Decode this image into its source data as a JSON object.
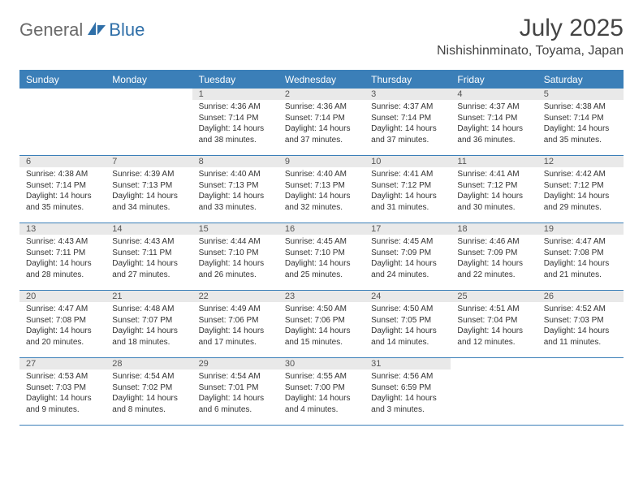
{
  "brand": {
    "part1": "General",
    "part2": "Blue"
  },
  "title": "July 2025",
  "location": "Nishishinminato, Toyama, Japan",
  "colors": {
    "header_bg": "#3b7fb8",
    "daynum_bg": "#e9e9e9",
    "rule": "#3b7fb8",
    "logo_gray": "#6a6a6a",
    "logo_blue": "#2f6fa8"
  },
  "day_names": [
    "Sunday",
    "Monday",
    "Tuesday",
    "Wednesday",
    "Thursday",
    "Friday",
    "Saturday"
  ],
  "weeks": [
    [
      {
        "empty": true
      },
      {
        "empty": true
      },
      {
        "day": "1",
        "sunrise": "Sunrise: 4:36 AM",
        "sunset": "Sunset: 7:14 PM",
        "daylight1": "Daylight: 14 hours",
        "daylight2": "and 38 minutes."
      },
      {
        "day": "2",
        "sunrise": "Sunrise: 4:36 AM",
        "sunset": "Sunset: 7:14 PM",
        "daylight1": "Daylight: 14 hours",
        "daylight2": "and 37 minutes."
      },
      {
        "day": "3",
        "sunrise": "Sunrise: 4:37 AM",
        "sunset": "Sunset: 7:14 PM",
        "daylight1": "Daylight: 14 hours",
        "daylight2": "and 37 minutes."
      },
      {
        "day": "4",
        "sunrise": "Sunrise: 4:37 AM",
        "sunset": "Sunset: 7:14 PM",
        "daylight1": "Daylight: 14 hours",
        "daylight2": "and 36 minutes."
      },
      {
        "day": "5",
        "sunrise": "Sunrise: 4:38 AM",
        "sunset": "Sunset: 7:14 PM",
        "daylight1": "Daylight: 14 hours",
        "daylight2": "and 35 minutes."
      }
    ],
    [
      {
        "day": "6",
        "sunrise": "Sunrise: 4:38 AM",
        "sunset": "Sunset: 7:14 PM",
        "daylight1": "Daylight: 14 hours",
        "daylight2": "and 35 minutes."
      },
      {
        "day": "7",
        "sunrise": "Sunrise: 4:39 AM",
        "sunset": "Sunset: 7:13 PM",
        "daylight1": "Daylight: 14 hours",
        "daylight2": "and 34 minutes."
      },
      {
        "day": "8",
        "sunrise": "Sunrise: 4:40 AM",
        "sunset": "Sunset: 7:13 PM",
        "daylight1": "Daylight: 14 hours",
        "daylight2": "and 33 minutes."
      },
      {
        "day": "9",
        "sunrise": "Sunrise: 4:40 AM",
        "sunset": "Sunset: 7:13 PM",
        "daylight1": "Daylight: 14 hours",
        "daylight2": "and 32 minutes."
      },
      {
        "day": "10",
        "sunrise": "Sunrise: 4:41 AM",
        "sunset": "Sunset: 7:12 PM",
        "daylight1": "Daylight: 14 hours",
        "daylight2": "and 31 minutes."
      },
      {
        "day": "11",
        "sunrise": "Sunrise: 4:41 AM",
        "sunset": "Sunset: 7:12 PM",
        "daylight1": "Daylight: 14 hours",
        "daylight2": "and 30 minutes."
      },
      {
        "day": "12",
        "sunrise": "Sunrise: 4:42 AM",
        "sunset": "Sunset: 7:12 PM",
        "daylight1": "Daylight: 14 hours",
        "daylight2": "and 29 minutes."
      }
    ],
    [
      {
        "day": "13",
        "sunrise": "Sunrise: 4:43 AM",
        "sunset": "Sunset: 7:11 PM",
        "daylight1": "Daylight: 14 hours",
        "daylight2": "and 28 minutes."
      },
      {
        "day": "14",
        "sunrise": "Sunrise: 4:43 AM",
        "sunset": "Sunset: 7:11 PM",
        "daylight1": "Daylight: 14 hours",
        "daylight2": "and 27 minutes."
      },
      {
        "day": "15",
        "sunrise": "Sunrise: 4:44 AM",
        "sunset": "Sunset: 7:10 PM",
        "daylight1": "Daylight: 14 hours",
        "daylight2": "and 26 minutes."
      },
      {
        "day": "16",
        "sunrise": "Sunrise: 4:45 AM",
        "sunset": "Sunset: 7:10 PM",
        "daylight1": "Daylight: 14 hours",
        "daylight2": "and 25 minutes."
      },
      {
        "day": "17",
        "sunrise": "Sunrise: 4:45 AM",
        "sunset": "Sunset: 7:09 PM",
        "daylight1": "Daylight: 14 hours",
        "daylight2": "and 24 minutes."
      },
      {
        "day": "18",
        "sunrise": "Sunrise: 4:46 AM",
        "sunset": "Sunset: 7:09 PM",
        "daylight1": "Daylight: 14 hours",
        "daylight2": "and 22 minutes."
      },
      {
        "day": "19",
        "sunrise": "Sunrise: 4:47 AM",
        "sunset": "Sunset: 7:08 PM",
        "daylight1": "Daylight: 14 hours",
        "daylight2": "and 21 minutes."
      }
    ],
    [
      {
        "day": "20",
        "sunrise": "Sunrise: 4:47 AM",
        "sunset": "Sunset: 7:08 PM",
        "daylight1": "Daylight: 14 hours",
        "daylight2": "and 20 minutes."
      },
      {
        "day": "21",
        "sunrise": "Sunrise: 4:48 AM",
        "sunset": "Sunset: 7:07 PM",
        "daylight1": "Daylight: 14 hours",
        "daylight2": "and 18 minutes."
      },
      {
        "day": "22",
        "sunrise": "Sunrise: 4:49 AM",
        "sunset": "Sunset: 7:06 PM",
        "daylight1": "Daylight: 14 hours",
        "daylight2": "and 17 minutes."
      },
      {
        "day": "23",
        "sunrise": "Sunrise: 4:50 AM",
        "sunset": "Sunset: 7:06 PM",
        "daylight1": "Daylight: 14 hours",
        "daylight2": "and 15 minutes."
      },
      {
        "day": "24",
        "sunrise": "Sunrise: 4:50 AM",
        "sunset": "Sunset: 7:05 PM",
        "daylight1": "Daylight: 14 hours",
        "daylight2": "and 14 minutes."
      },
      {
        "day": "25",
        "sunrise": "Sunrise: 4:51 AM",
        "sunset": "Sunset: 7:04 PM",
        "daylight1": "Daylight: 14 hours",
        "daylight2": "and 12 minutes."
      },
      {
        "day": "26",
        "sunrise": "Sunrise: 4:52 AM",
        "sunset": "Sunset: 7:03 PM",
        "daylight1": "Daylight: 14 hours",
        "daylight2": "and 11 minutes."
      }
    ],
    [
      {
        "day": "27",
        "sunrise": "Sunrise: 4:53 AM",
        "sunset": "Sunset: 7:03 PM",
        "daylight1": "Daylight: 14 hours",
        "daylight2": "and 9 minutes."
      },
      {
        "day": "28",
        "sunrise": "Sunrise: 4:54 AM",
        "sunset": "Sunset: 7:02 PM",
        "daylight1": "Daylight: 14 hours",
        "daylight2": "and 8 minutes."
      },
      {
        "day": "29",
        "sunrise": "Sunrise: 4:54 AM",
        "sunset": "Sunset: 7:01 PM",
        "daylight1": "Daylight: 14 hours",
        "daylight2": "and 6 minutes."
      },
      {
        "day": "30",
        "sunrise": "Sunrise: 4:55 AM",
        "sunset": "Sunset: 7:00 PM",
        "daylight1": "Daylight: 14 hours",
        "daylight2": "and 4 minutes."
      },
      {
        "day": "31",
        "sunrise": "Sunrise: 4:56 AM",
        "sunset": "Sunset: 6:59 PM",
        "daylight1": "Daylight: 14 hours",
        "daylight2": "and 3 minutes."
      },
      {
        "empty": true
      },
      {
        "empty": true
      }
    ]
  ]
}
